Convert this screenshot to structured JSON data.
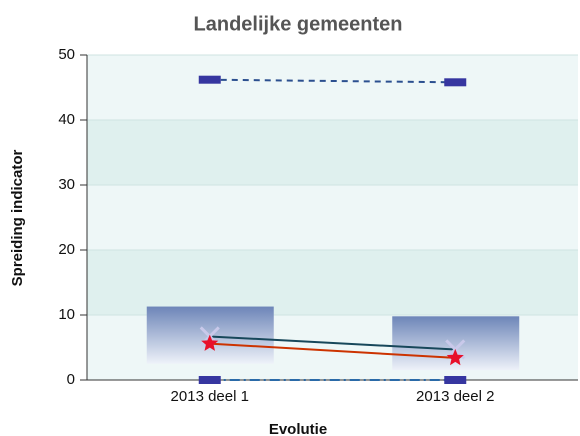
{
  "chart_data": {
    "type": "box",
    "title": "Landelijke gemeenten",
    "xlabel": "Evolutie",
    "ylabel": "Spreiding indicator",
    "categories": [
      "2013 deel 1",
      "2013 deel 2"
    ],
    "ylim": [
      0,
      50
    ],
    "yticks": [
      0,
      10,
      20,
      30,
      40,
      50
    ],
    "grid": true,
    "box": {
      "low": [
        2.5,
        1.5
      ],
      "high": [
        11.3,
        9.8
      ],
      "color": "#6d85b8"
    },
    "series": [
      {
        "color": "#2b4f8f",
        "marker": "rect",
        "marker_color": "#3636a0",
        "line_style": "dash",
        "values": [
          46.2,
          45.8
        ]
      },
      {
        "color": "#2a6aa8",
        "marker": "rect",
        "marker_color": "#3636a0",
        "line_style": "dashdot",
        "values": [
          0,
          0
        ]
      },
      {
        "color": "#17475a",
        "marker": "x",
        "marker_color": "#c9c9ea",
        "line_style": "solid",
        "values": [
          6.7,
          4.7
        ]
      },
      {
        "color": "#cc3300",
        "marker": "star",
        "marker_color": "#e8102a",
        "line_style": "solid",
        "values": [
          5.6,
          3.4
        ]
      }
    ]
  }
}
